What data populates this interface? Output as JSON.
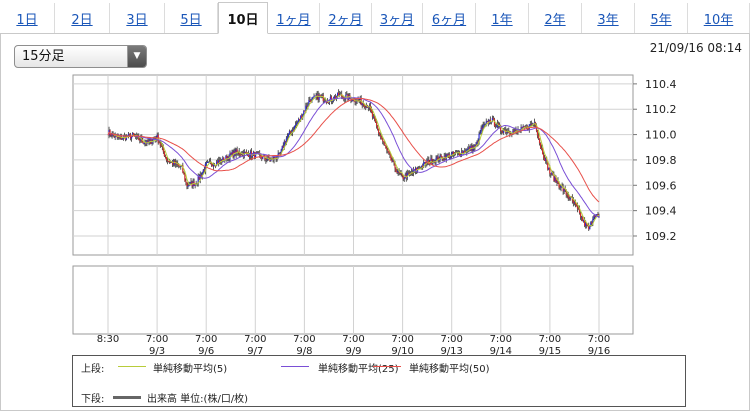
{
  "tabs": [
    {
      "label": "1日",
      "active": false
    },
    {
      "label": "2日",
      "active": false
    },
    {
      "label": "3日",
      "active": false
    },
    {
      "label": "5日",
      "active": false
    },
    {
      "label": "10日",
      "active": true
    },
    {
      "label": "1ヶ月",
      "active": false
    },
    {
      "label": "2ヶ月",
      "active": false
    },
    {
      "label": "3ヶ月",
      "active": false
    },
    {
      "label": "6ヶ月",
      "active": false
    },
    {
      "label": "1年",
      "active": false
    },
    {
      "label": "2年",
      "active": false
    },
    {
      "label": "3年",
      "active": false
    },
    {
      "label": "5年",
      "active": false
    },
    {
      "label": "10年",
      "active": false
    }
  ],
  "interval_select": {
    "value": "15分足"
  },
  "timestamp": "21/09/16 08:14",
  "legend": {
    "upper_label": "上段:",
    "lower_label": "下段:",
    "ma5": {
      "label": "単純移動平均(5)",
      "color": "#b8cc3a"
    },
    "ma25": {
      "label": "単純移動平均(25)",
      "color": "#7a4fd6"
    },
    "ma50": {
      "label": "単純移動平均(50)",
      "color": "#e8504a"
    },
    "volume": {
      "label": "出来高 単位:(株/口/枚)",
      "color": "#666666"
    }
  },
  "chart_data": {
    "type": "candlestick",
    "y_ticks": [
      "110.4",
      "110.2",
      "110.0",
      "109.8",
      "109.6",
      "109.4",
      "109.2"
    ],
    "ylim": [
      109.05,
      110.47
    ],
    "grid": true,
    "x_ticks": [
      {
        "time": "8:30",
        "date": ""
      },
      {
        "time": "7:00",
        "date": "9/3"
      },
      {
        "time": "7:00",
        "date": "9/6"
      },
      {
        "time": "7:00",
        "date": "9/7"
      },
      {
        "time": "7:00",
        "date": "9/8"
      },
      {
        "time": "7:00",
        "date": "9/9"
      },
      {
        "time": "7:00",
        "date": "9/10"
      },
      {
        "time": "7:00",
        "date": "9/13"
      },
      {
        "time": "7:00",
        "date": "9/14"
      },
      {
        "time": "7:00",
        "date": "9/15"
      },
      {
        "time": "7:00",
        "date": "9/16"
      }
    ],
    "price_path": [
      [
        0,
        110.02
      ],
      [
        0.2,
        109.97
      ],
      [
        0.5,
        109.99
      ],
      [
        0.8,
        109.93
      ],
      [
        1.0,
        109.98
      ],
      [
        1.2,
        109.8
      ],
      [
        1.5,
        109.74
      ],
      [
        1.6,
        109.6
      ],
      [
        1.8,
        109.62
      ],
      [
        2.0,
        109.76
      ],
      [
        2.3,
        109.79
      ],
      [
        2.6,
        109.86
      ],
      [
        3.0,
        109.84
      ],
      [
        3.3,
        109.8
      ],
      [
        3.5,
        109.83
      ],
      [
        3.6,
        109.95
      ],
      [
        3.9,
        110.12
      ],
      [
        4.1,
        110.27
      ],
      [
        4.3,
        110.3
      ],
      [
        4.5,
        110.27
      ],
      [
        4.7,
        110.31
      ],
      [
        5.0,
        110.28
      ],
      [
        5.3,
        110.23
      ],
      [
        5.5,
        110.03
      ],
      [
        5.7,
        109.85
      ],
      [
        5.9,
        109.7
      ],
      [
        6.0,
        109.66
      ],
      [
        6.2,
        109.7
      ],
      [
        6.5,
        109.78
      ],
      [
        6.8,
        109.82
      ],
      [
        7.2,
        109.86
      ],
      [
        7.5,
        109.91
      ],
      [
        7.6,
        110.04
      ],
      [
        7.8,
        110.12
      ],
      [
        8.0,
        110.04
      ],
      [
        8.3,
        110.02
      ],
      [
        8.5,
        110.05
      ],
      [
        8.7,
        110.1
      ],
      [
        8.8,
        109.92
      ],
      [
        9.0,
        109.7
      ],
      [
        9.2,
        109.6
      ],
      [
        9.4,
        109.5
      ],
      [
        9.5,
        109.45
      ],
      [
        9.7,
        109.3
      ],
      [
        9.8,
        109.25
      ],
      [
        9.9,
        109.38
      ],
      [
        10.0,
        109.34
      ]
    ]
  }
}
